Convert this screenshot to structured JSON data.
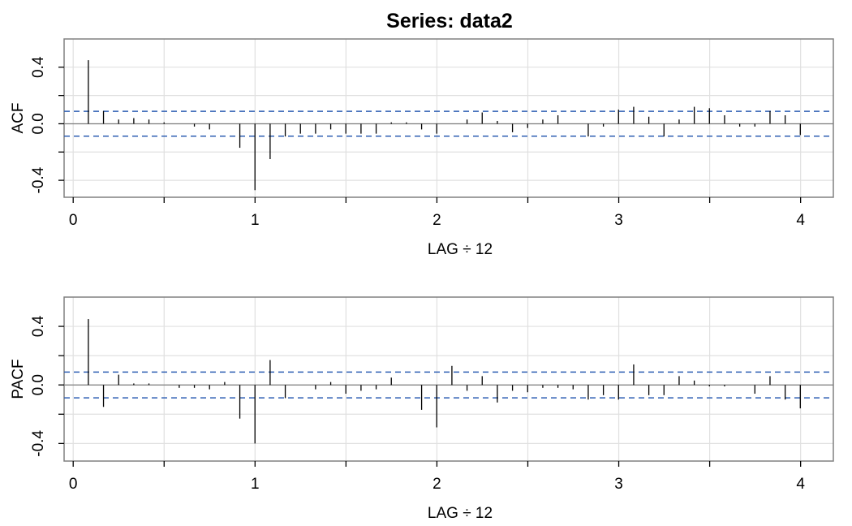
{
  "title": "Series:  data2",
  "chart_data": [
    {
      "type": "bar",
      "name": "acf-panel",
      "ylabel": "ACF",
      "xlabel": "LAG ÷ 12",
      "xlim": [
        -0.05,
        4.18
      ],
      "ylim": [
        -0.52,
        0.6
      ],
      "x_ticks": [
        0,
        1,
        2,
        3,
        4
      ],
      "x_minor_ticks": [
        0.5,
        1.5,
        2.5,
        3.5
      ],
      "y_ticks": [
        -0.4,
        0.0,
        0.4
      ],
      "y_minor_ticks": [
        -0.2,
        0.2
      ],
      "grid": true,
      "confidence_band": 0.088,
      "lag_step": 0.0833,
      "values": [
        0.45,
        0.09,
        0.03,
        0.04,
        0.03,
        0.01,
        0.0,
        -0.02,
        -0.04,
        0.0,
        -0.17,
        -0.47,
        -0.25,
        -0.09,
        -0.07,
        -0.07,
        -0.04,
        -0.07,
        -0.07,
        -0.07,
        0.01,
        0.01,
        -0.04,
        -0.07,
        0.0,
        0.03,
        0.08,
        0.02,
        -0.06,
        -0.03,
        0.03,
        0.06,
        0.0,
        -0.09,
        -0.02,
        0.1,
        0.12,
        0.05,
        -0.09,
        0.03,
        0.12,
        0.11,
        0.06,
        -0.02,
        -0.02,
        0.09,
        0.06,
        -0.08
      ]
    },
    {
      "type": "bar",
      "name": "pacf-panel",
      "ylabel": "PACF",
      "xlabel": "LAG ÷ 12",
      "xlim": [
        -0.05,
        4.18
      ],
      "ylim": [
        -0.52,
        0.6
      ],
      "x_ticks": [
        0,
        1,
        2,
        3,
        4
      ],
      "x_minor_ticks": [
        0.5,
        1.5,
        2.5,
        3.5
      ],
      "y_ticks": [
        -0.4,
        0.0,
        0.4
      ],
      "y_minor_ticks": [
        -0.2,
        0.2
      ],
      "grid": true,
      "confidence_band": 0.088,
      "lag_step": 0.0833,
      "values": [
        0.45,
        -0.15,
        0.07,
        0.01,
        0.01,
        0.0,
        -0.02,
        -0.02,
        -0.03,
        0.02,
        -0.23,
        -0.4,
        0.17,
        -0.09,
        0.0,
        -0.03,
        0.02,
        -0.06,
        -0.04,
        -0.03,
        0.05,
        0.0,
        -0.17,
        -0.29,
        0.13,
        -0.04,
        0.06,
        -0.12,
        -0.04,
        -0.05,
        -0.02,
        -0.02,
        -0.03,
        -0.1,
        -0.07,
        -0.1,
        0.14,
        -0.07,
        -0.07,
        0.06,
        0.03,
        -0.01,
        -0.01,
        0.0,
        -0.06,
        0.06,
        -0.1,
        -0.16
      ]
    }
  ]
}
